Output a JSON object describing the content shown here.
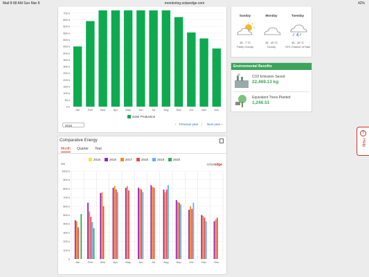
{
  "status_bar": {
    "left": "Mail   8:08 AM   Sun Mar 8",
    "url": "monitoring.solaredge.com",
    "right": "42%"
  },
  "production_chart": {
    "year_selector": "2016",
    "legend": "Solar Production",
    "prev": "Previous year",
    "next": "Next year",
    "color": "#0eaa50"
  },
  "comparative": {
    "title": "Comparative Energy",
    "tabs": [
      "Month",
      "Quarter",
      "Year"
    ],
    "unit": "Wh",
    "logo": "solar",
    "logo_accent": "edge"
  },
  "weather": {
    "days": [
      {
        "day": "Sunday",
        "temp": "15 - 7 °C",
        "desc": "Partly Cloudy",
        "icon": "partly-cloudy-icon"
      },
      {
        "day": "Monday",
        "temp": "19 - 10 °C",
        "desc": "Cloudy",
        "icon": "cloudy-icon"
      },
      {
        "day": "Tuesday",
        "temp": "15 - 10 °C",
        "desc": "70% Chance of Rain",
        "icon": "rain-icon"
      }
    ]
  },
  "env": {
    "title": "Environmental Benefits",
    "co2_label": "CO2 Emission Saved",
    "co2_value": "22,469.13 kg",
    "trees_label": "Equivalent Trees Planted",
    "trees_value": "1,246.51"
  },
  "help": {
    "label": "Help"
  },
  "chart_data": [
    {
      "type": "bar",
      "categories": [
        "Jan",
        "Feb",
        "Mar",
        "Apr",
        "May",
        "Jun",
        "Jul",
        "Aug",
        "Sep",
        "Oct",
        "Nov",
        "Dec"
      ],
      "series": [
        {
          "name": "Solar Production",
          "values": [
            450,
            640,
            720,
            720,
            720,
            720,
            720,
            720,
            670,
            555,
            510,
            435
          ]
        }
      ],
      "ylabel": "",
      "ylim": [
        0,
        720
      ],
      "yticks": [
        "0 k",
        "50 k",
        "100 k",
        "150 k",
        "200 k",
        "250 k",
        "300 k",
        "350 k",
        "400 k",
        "450 k",
        "500 k",
        "550 k",
        "600 k",
        "650 k",
        "700 k"
      ]
    },
    {
      "type": "bar",
      "categories": [
        "Jan",
        "Feb",
        "Mar",
        "Apr",
        "May",
        "Jun",
        "Jul",
        "Aug",
        "Sep",
        "Oct",
        "Nov",
        "Dec"
      ],
      "series": [
        {
          "name": "2015",
          "color": "#f2e635",
          "values": [
            0,
            0,
            0,
            0,
            0,
            0,
            0,
            0,
            0,
            0,
            0,
            0
          ]
        },
        {
          "name": "2016",
          "color": "#9b1fb5",
          "values": [
            440,
            640,
            750,
            810,
            810,
            810,
            840,
            790,
            670,
            560,
            500,
            430
          ]
        },
        {
          "name": "2017",
          "color": "#f28c1e",
          "values": [
            430,
            540,
            760,
            830,
            830,
            800,
            820,
            760,
            650,
            600,
            490,
            450
          ]
        },
        {
          "name": "2018",
          "color": "#e5484d",
          "values": [
            360,
            480,
            600,
            790,
            780,
            790,
            810,
            790,
            640,
            570,
            470,
            470
          ]
        },
        {
          "name": "2019",
          "color": "#66aef0",
          "values": [
            0,
            420,
            0,
            760,
            0,
            760,
            0,
            840,
            620,
            640,
            430,
            0
          ]
        },
        {
          "name": "2020",
          "color": "#36a852",
          "values": [
            510,
            350,
            0,
            0,
            0,
            0,
            0,
            0,
            0,
            0,
            0,
            0
          ]
        }
      ],
      "ylabel": "Wh",
      "ylim": [
        0,
        1000
      ],
      "yticks": [
        "0",
        "100 k",
        "200 k",
        "300 k",
        "400 k",
        "500 k",
        "600 k",
        "700 k",
        "800 k",
        "900 k",
        "1000 k"
      ]
    }
  ]
}
